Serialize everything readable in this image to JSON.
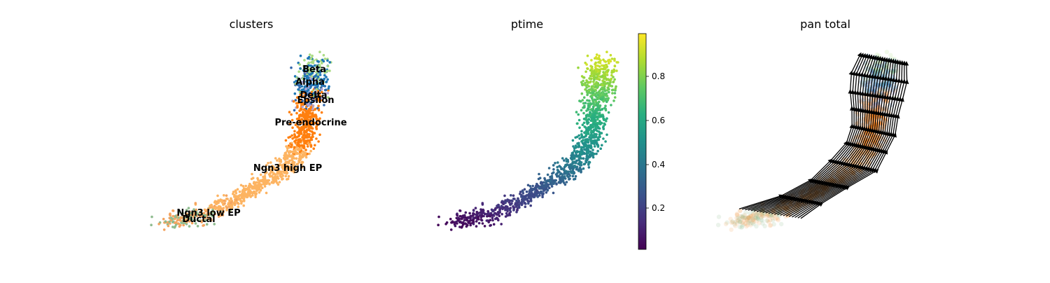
{
  "figure": {
    "panels": [
      {
        "id": "clusters",
        "title": "clusters"
      },
      {
        "id": "ptime",
        "title": "ptime"
      },
      {
        "id": "velocity",
        "title": "pan total"
      }
    ]
  },
  "chart_data": [
    {
      "type": "scatter",
      "title": "clusters",
      "xlabel": "",
      "ylabel": "",
      "series": [
        {
          "name": "Ductal",
          "color": "#8fbc8f"
        },
        {
          "name": "Ngn3 low EP",
          "color": "#f4a460"
        },
        {
          "name": "Ngn3 high EP",
          "color": "#fdb462"
        },
        {
          "name": "Pre-endocrine",
          "color": "#ff7f0e"
        },
        {
          "name": "Beta",
          "color": "#aadb84"
        },
        {
          "name": "Alpha",
          "color": "#1f77b4"
        },
        {
          "name": "Delta",
          "color": "#3366aa"
        },
        {
          "name": "Epsilon",
          "color": "#b0a3d4"
        }
      ],
      "annotations": [
        "Beta",
        "Alpha",
        "Delta",
        "Epsilon",
        "Pre-endocrine",
        "Ngn3 high EP",
        "Ngn3 low EP",
        "Ductal"
      ]
    },
    {
      "type": "scatter",
      "title": "ptime",
      "colormap": "viridis",
      "colorbar": {
        "range": [
          0.0,
          1.0
        ],
        "ticks": [
          "0.2",
          "0.4",
          "0.6",
          "0.8"
        ],
        "tick_values": [
          0.2,
          0.4,
          0.6,
          0.8
        ]
      }
    },
    {
      "type": "scatter",
      "title": "pan total",
      "overlay": "velocity streamlines"
    }
  ]
}
